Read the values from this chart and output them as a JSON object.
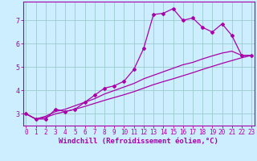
{
  "xlabel": "Windchill (Refroidissement éolien,°C)",
  "bg_color": "#cceeff",
  "line_color": "#aa00aa",
  "grid_color": "#99cccc",
  "x_data": [
    0,
    1,
    2,
    3,
    4,
    5,
    6,
    7,
    8,
    9,
    10,
    11,
    12,
    13,
    14,
    15,
    16,
    17,
    18,
    19,
    20,
    21,
    22,
    23
  ],
  "y_main": [
    3.0,
    2.78,
    2.78,
    3.2,
    3.1,
    3.2,
    3.5,
    3.8,
    4.1,
    4.2,
    4.4,
    4.9,
    5.8,
    7.25,
    7.3,
    7.5,
    7.0,
    7.1,
    6.7,
    6.5,
    6.85,
    6.35,
    5.5,
    5.5
  ],
  "y_line1": [
    3.0,
    2.78,
    2.9,
    3.1,
    3.2,
    3.35,
    3.5,
    3.65,
    3.85,
    4.0,
    4.15,
    4.3,
    4.5,
    4.65,
    4.8,
    4.95,
    5.1,
    5.2,
    5.35,
    5.48,
    5.6,
    5.68,
    5.5,
    5.5
  ],
  "y_line2": [
    3.0,
    2.78,
    2.85,
    3.0,
    3.1,
    3.2,
    3.32,
    3.45,
    3.58,
    3.7,
    3.82,
    3.95,
    4.1,
    4.25,
    4.38,
    4.5,
    4.63,
    4.76,
    4.9,
    5.03,
    5.16,
    5.28,
    5.4,
    5.5
  ],
  "xlim": [
    -0.3,
    23.3
  ],
  "ylim": [
    2.5,
    7.8
  ],
  "yticks": [
    3,
    4,
    5,
    6,
    7
  ],
  "xticks": [
    0,
    1,
    2,
    3,
    4,
    5,
    6,
    7,
    8,
    9,
    10,
    11,
    12,
    13,
    14,
    15,
    16,
    17,
    18,
    19,
    20,
    21,
    22,
    23
  ],
  "tick_fontsize": 5.5,
  "xlabel_fontsize": 6.5
}
